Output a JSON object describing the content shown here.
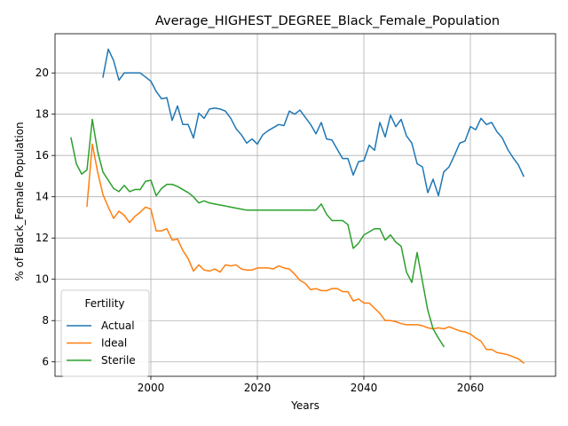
{
  "chart_data": {
    "type": "line",
    "title": "Average_HIGHEST_DEGREE_Black_Female_Population",
    "xlabel": "Years",
    "ylabel": "% of Black_Female Population",
    "xlim": [
      1982,
      2076
    ],
    "ylim": [
      5.3,
      21.9
    ],
    "xticks": [
      2000,
      2020,
      2040,
      2060
    ],
    "yticks": [
      6,
      8,
      10,
      12,
      14,
      16,
      18,
      20
    ],
    "grid": true,
    "legend": {
      "title": "Fertility",
      "placement": "lower left"
    },
    "series": [
      {
        "name": "Actual",
        "color": "#1f77b4",
        "x": [
          1991,
          1992,
          1993,
          1994,
          1995,
          1996,
          1997,
          1998,
          1999,
          2000,
          2001,
          2002,
          2003,
          2004,
          2005,
          2006,
          2007,
          2008,
          2009,
          2010,
          2011,
          2012,
          2013,
          2014,
          2015,
          2016,
          2017,
          2018,
          2019,
          2020,
          2021,
          2022,
          2023,
          2024,
          2025,
          2026,
          2027,
          2028,
          2029,
          2030,
          2031,
          2032,
          2033,
          2034,
          2035,
          2036,
          2037,
          2038,
          2039,
          2040,
          2041,
          2042,
          2043,
          2044,
          2045,
          2046,
          2047,
          2048,
          2049,
          2050,
          2051,
          2052,
          2053,
          2054,
          2055,
          2056,
          2057,
          2058,
          2059,
          2060,
          2061,
          2062,
          2063,
          2064,
          2065,
          2066,
          2067,
          2068,
          2069,
          2070
        ],
        "y": [
          19.8,
          21.15,
          20.6,
          19.65,
          20.0,
          20.0,
          20.0,
          20.0,
          19.8,
          19.6,
          19.1,
          18.75,
          18.8,
          17.7,
          18.4,
          17.5,
          17.5,
          16.85,
          18.05,
          17.8,
          18.25,
          18.3,
          18.25,
          18.15,
          17.8,
          17.3,
          17.0,
          16.6,
          16.8,
          16.55,
          17.0,
          17.2,
          17.35,
          17.5,
          17.45,
          18.15,
          18.0,
          18.2,
          17.85,
          17.5,
          17.05,
          17.6,
          16.8,
          16.75,
          16.3,
          15.85,
          15.85,
          15.05,
          15.7,
          15.75,
          16.5,
          16.25,
          17.6,
          16.9,
          17.95,
          17.4,
          17.75,
          16.95,
          16.6,
          15.6,
          15.45,
          14.2,
          14.85,
          14.05,
          15.2,
          15.45,
          16.0,
          16.6,
          16.7,
          17.4,
          17.25,
          17.8,
          17.5,
          17.6,
          17.15,
          16.85,
          16.3,
          15.9,
          15.55,
          15.0
        ]
      },
      {
        "name": "Ideal",
        "color": "#ff7f0e",
        "x": [
          1988,
          1989,
          1990,
          1991,
          1992,
          1993,
          1994,
          1995,
          1996,
          1997,
          1998,
          1999,
          2000,
          2001,
          2002,
          2003,
          2004,
          2005,
          2006,
          2007,
          2008,
          2009,
          2010,
          2011,
          2012,
          2013,
          2014,
          2015,
          2016,
          2017,
          2018,
          2019,
          2020,
          2021,
          2022,
          2023,
          2024,
          2025,
          2026,
          2027,
          2028,
          2029,
          2030,
          2031,
          2032,
          2033,
          2034,
          2035,
          2036,
          2037,
          2038,
          2039,
          2040,
          2041,
          2042,
          2043,
          2044,
          2045,
          2046,
          2047,
          2048,
          2049,
          2050,
          2051,
          2052,
          2053,
          2054,
          2055,
          2056,
          2057,
          2058,
          2059,
          2060,
          2061,
          2062,
          2063,
          2064,
          2065,
          2066,
          2067,
          2068,
          2069,
          2070
        ],
        "y": [
          13.55,
          16.55,
          15.2,
          14.1,
          13.5,
          12.95,
          13.3,
          13.1,
          12.75,
          13.05,
          13.25,
          13.5,
          13.4,
          12.35,
          12.35,
          12.45,
          11.9,
          11.95,
          11.4,
          11.0,
          10.4,
          10.7,
          10.45,
          10.4,
          10.5,
          10.35,
          10.7,
          10.65,
          10.7,
          10.5,
          10.45,
          10.45,
          10.55,
          10.55,
          10.55,
          10.5,
          10.65,
          10.55,
          10.5,
          10.25,
          9.95,
          9.8,
          9.5,
          9.55,
          9.45,
          9.45,
          9.55,
          9.55,
          9.4,
          9.4,
          8.95,
          9.05,
          8.85,
          8.85,
          8.6,
          8.35,
          8.0,
          8.0,
          7.95,
          7.85,
          7.8,
          7.8,
          7.8,
          7.75,
          7.65,
          7.6,
          7.65,
          7.6,
          7.7,
          7.6,
          7.5,
          7.45,
          7.35,
          7.15,
          7.0,
          6.6,
          6.6,
          6.45,
          6.4,
          6.35,
          6.25,
          6.15,
          5.95
        ]
      },
      {
        "name": "Sterile",
        "color": "#2ca02c",
        "x": [
          1985,
          1986,
          1987,
          1988,
          1989,
          1990,
          1991,
          1992,
          1993,
          1994,
          1995,
          1996,
          1997,
          1998,
          1999,
          2000,
          2001,
          2002,
          2003,
          2004,
          2005,
          2006,
          2007,
          2008,
          2009,
          2010,
          2011,
          2012,
          2013,
          2014,
          2015,
          2016,
          2017,
          2018,
          2019,
          2020,
          2021,
          2022,
          2023,
          2024,
          2025,
          2026,
          2027,
          2028,
          2029,
          2030,
          2031,
          2032,
          2033,
          2034,
          2035,
          2036,
          2037,
          2038,
          2039,
          2040,
          2041,
          2042,
          2043,
          2044,
          2045,
          2046,
          2047,
          2048,
          2049,
          2050,
          2051,
          2052,
          2053,
          2054,
          2055
        ],
        "y": [
          16.85,
          15.6,
          15.1,
          15.3,
          17.75,
          16.2,
          15.2,
          14.8,
          14.4,
          14.25,
          14.55,
          14.25,
          14.35,
          14.35,
          14.75,
          14.8,
          14.05,
          14.4,
          14.6,
          14.6,
          14.5,
          14.35,
          14.2,
          14.0,
          13.7,
          13.8,
          13.7,
          13.65,
          13.6,
          13.55,
          13.5,
          13.45,
          13.4,
          13.35,
          13.35,
          13.35,
          13.35,
          13.35,
          13.35,
          13.35,
          13.35,
          13.35,
          13.35,
          13.35,
          13.35,
          13.35,
          13.35,
          13.65,
          13.15,
          12.85,
          12.85,
          12.85,
          12.65,
          11.5,
          11.75,
          12.15,
          12.3,
          12.45,
          12.45,
          11.9,
          12.15,
          11.8,
          11.6,
          10.35,
          9.85,
          11.3,
          9.9,
          8.5,
          7.6,
          7.15,
          6.75
        ]
      }
    ]
  }
}
